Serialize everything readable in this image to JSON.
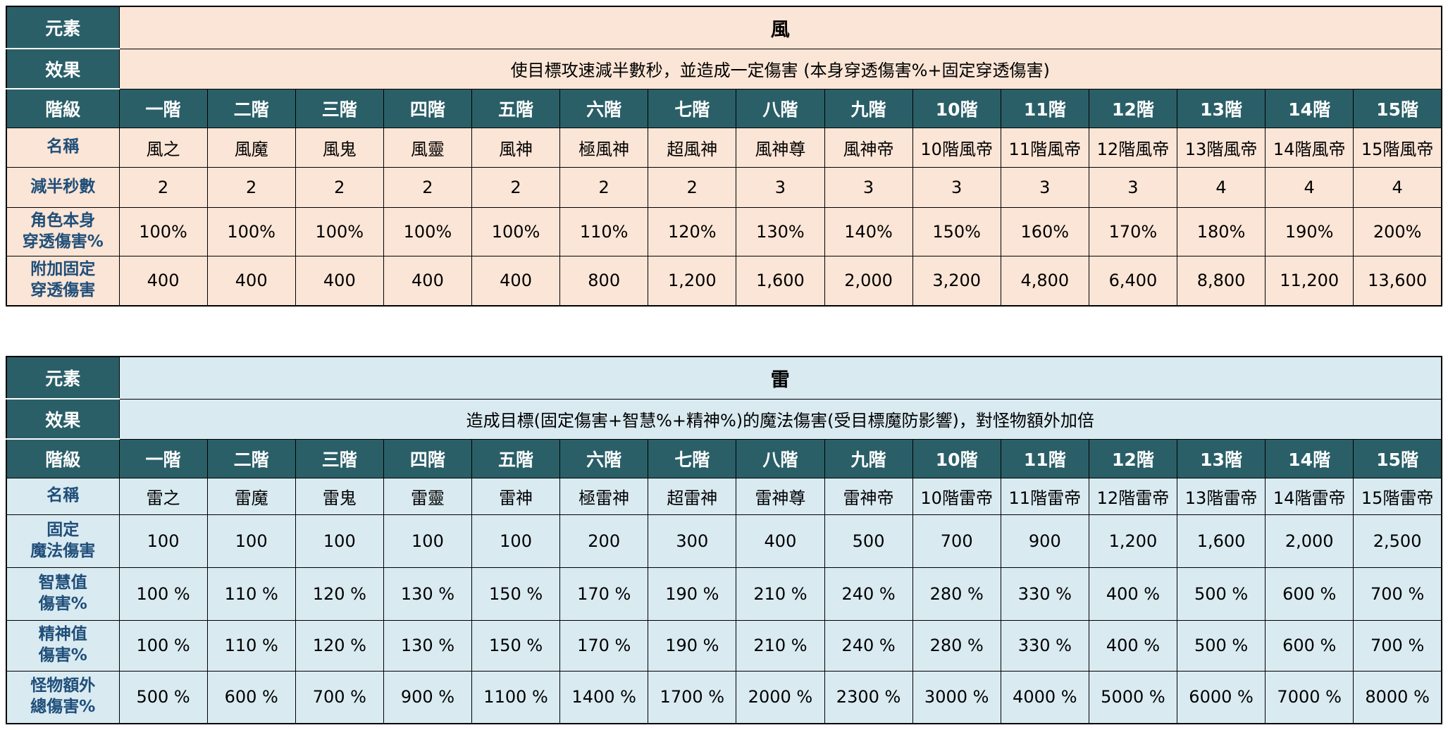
{
  "page": {
    "background": "#FFFFFF"
  },
  "tables": [
    {
      "id": "wind",
      "element_label": "元素",
      "element_value": "風",
      "effect_label": "效果",
      "effect_value": "使目標攻速減半數秒，並造成一定傷害 (本身穿透傷害%+固定穿透傷害)",
      "tier_label": "階級",
      "tiers": [
        "一階",
        "二階",
        "三階",
        "四階",
        "五階",
        "六階",
        "七階",
        "八階",
        "九階",
        "10階",
        "11階",
        "12階",
        "13階",
        "14階",
        "15階"
      ],
      "rows": [
        {
          "label": "名稱",
          "values": [
            "風之",
            "風魔",
            "風鬼",
            "風靈",
            "風神",
            "極風神",
            "超風神",
            "風神尊",
            "風神帝",
            "10階風帝",
            "11階風帝",
            "12階風帝",
            "13階風帝",
            "14階風帝",
            "15階風帝"
          ]
        },
        {
          "label": "減半秒數",
          "values": [
            "2",
            "2",
            "2",
            "2",
            "2",
            "2",
            "2",
            "3",
            "3",
            "3",
            "3",
            "3",
            "4",
            "4",
            "4"
          ]
        },
        {
          "label": "角色本身\n穿透傷害%",
          "values": [
            "100%",
            "100%",
            "100%",
            "100%",
            "100%",
            "110%",
            "120%",
            "130%",
            "140%",
            "150%",
            "160%",
            "170%",
            "180%",
            "190%",
            "200%"
          ]
        },
        {
          "label": "附加固定\n穿透傷害",
          "values": [
            "400",
            "400",
            "400",
            "400",
            "400",
            "800",
            "1,200",
            "1,600",
            "2,000",
            "3,200",
            "4,800",
            "6,400",
            "8,800",
            "11,200",
            "13,600"
          ]
        }
      ],
      "colors": {
        "header_bg": "#2A5F68",
        "header_text": "#FFFFFF",
        "body_bg": "#FBE5D6",
        "label_text": "#1F4E79",
        "value_text": "#000000"
      }
    },
    {
      "id": "thunder",
      "element_label": "元素",
      "element_value": "雷",
      "effect_label": "效果",
      "effect_value": "造成目標(固定傷害+智慧%+精神%)的魔法傷害(受目標魔防影響)，對怪物額外加倍",
      "tier_label": "階級",
      "tiers": [
        "一階",
        "二階",
        "三階",
        "四階",
        "五階",
        "六階",
        "七階",
        "八階",
        "九階",
        "10階",
        "11階",
        "12階",
        "13階",
        "14階",
        "15階"
      ],
      "rows": [
        {
          "label": "名稱",
          "values": [
            "雷之",
            "雷魔",
            "雷鬼",
            "雷靈",
            "雷神",
            "極雷神",
            "超雷神",
            "雷神尊",
            "雷神帝",
            "10階雷帝",
            "11階雷帝",
            "12階雷帝",
            "13階雷帝",
            "14階雷帝",
            "15階雷帝"
          ]
        },
        {
          "label": "固定\n魔法傷害",
          "values": [
            "100",
            "100",
            "100",
            "100",
            "100",
            "200",
            "300",
            "400",
            "500",
            "700",
            "900",
            "1,200",
            "1,600",
            "2,000",
            "2,500"
          ]
        },
        {
          "label": "智慧值\n傷害%",
          "values": [
            "100 %",
            "110 %",
            "120 %",
            "130 %",
            "150 %",
            "170 %",
            "190 %",
            "210 %",
            "240 %",
            "280 %",
            "330 %",
            "400 %",
            "500 %",
            "600 %",
            "700 %"
          ]
        },
        {
          "label": "精神值\n傷害%",
          "values": [
            "100 %",
            "110 %",
            "120 %",
            "130 %",
            "150 %",
            "170 %",
            "190 %",
            "210 %",
            "240 %",
            "280 %",
            "330 %",
            "400 %",
            "500 %",
            "600 %",
            "700 %"
          ]
        },
        {
          "label": "怪物額外\n總傷害%",
          "values": [
            "500 %",
            "600 %",
            "700 %",
            "900 %",
            "1100 %",
            "1400 %",
            "1700 %",
            "2000 %",
            "2300 %",
            "3000 %",
            "4000 %",
            "5000 %",
            "6000 %",
            "7000 %",
            "8000 %"
          ]
        }
      ],
      "colors": {
        "header_bg": "#2A5F68",
        "header_text": "#FFFFFF",
        "body_bg": "#D9EAF1",
        "label_text": "#1F4E79",
        "value_text": "#000000"
      }
    }
  ]
}
